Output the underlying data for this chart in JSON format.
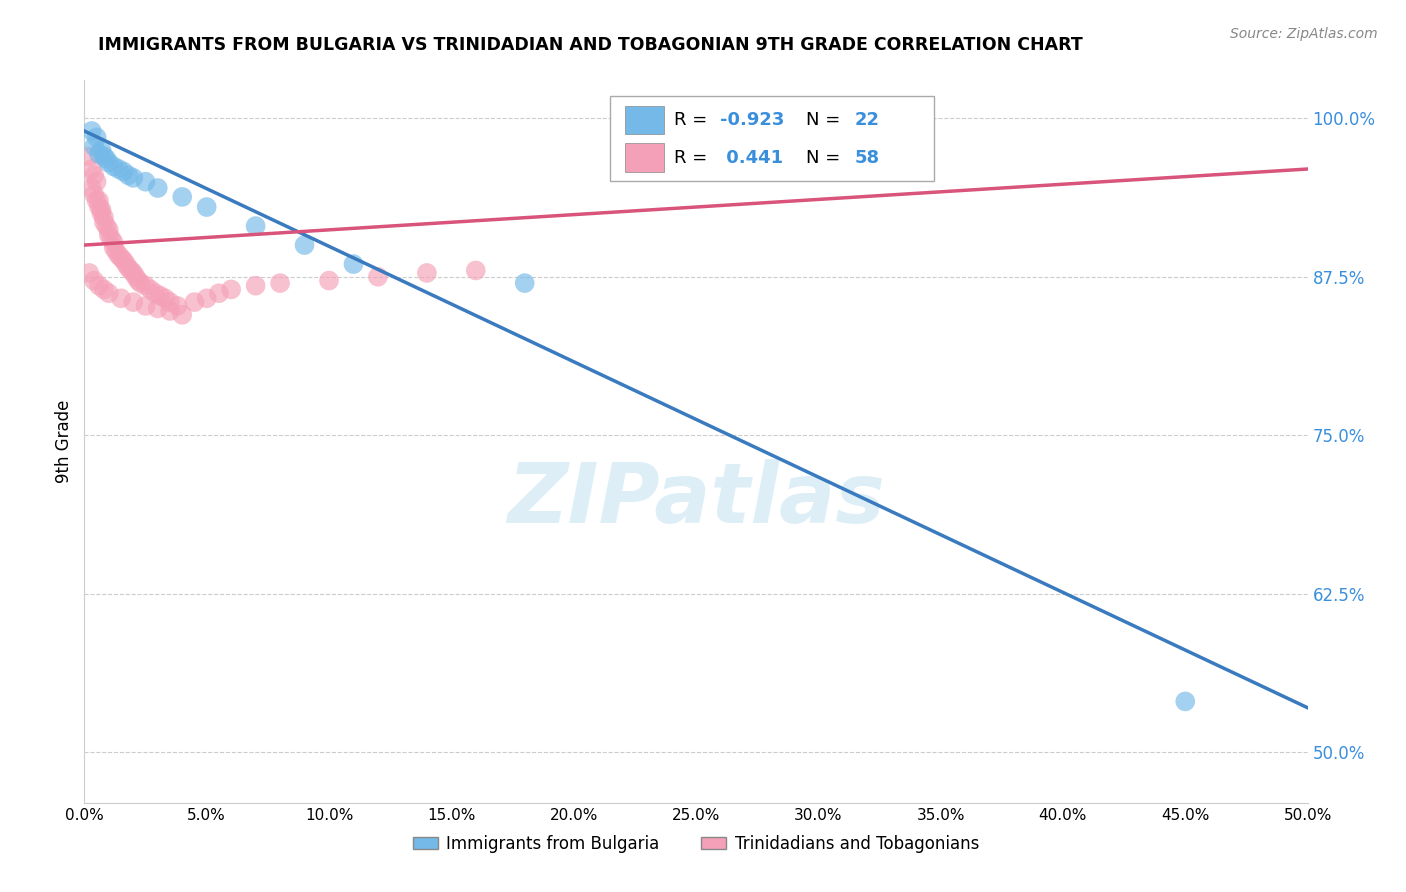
{
  "title": "IMMIGRANTS FROM BULGARIA VS TRINIDADIAN AND TOBAGONIAN 9TH GRADE CORRELATION CHART",
  "source": "Source: ZipAtlas.com",
  "ylabel": "9th Grade",
  "xlim": [
    0.0,
    0.5
  ],
  "ylim": [
    0.46,
    1.03
  ],
  "y_ticks": [
    0.5,
    0.625,
    0.75,
    0.875,
    1.0
  ],
  "y_tick_labels": [
    "50.0%",
    "62.5%",
    "75.0%",
    "87.5%",
    "100.0%"
  ],
  "x_ticks": [
    0.0,
    0.05,
    0.1,
    0.15,
    0.2,
    0.25,
    0.3,
    0.35,
    0.4,
    0.45,
    0.5
  ],
  "x_tick_labels": [
    "0.0%",
    "5.0%",
    "10.0%",
    "15.0%",
    "20.0%",
    "25.0%",
    "30.0%",
    "35.0%",
    "40.0%",
    "45.0%",
    "50.0%"
  ],
  "bulgaria_R": -0.923,
  "bulgaria_N": 22,
  "trinidad_R": 0.441,
  "trinidad_N": 58,
  "bulgaria_color": "#74b9e8",
  "trinidad_color": "#f4a0b8",
  "bulgaria_line_color": "#3a7abf",
  "trinidad_line_color": "#d9547a",
  "watermark": "ZIPatlas",
  "legend_bulgaria": "Immigrants from Bulgaria",
  "legend_trinidad": "Trinidadians and Tobagonians",
  "bulgaria_points": [
    [
      0.003,
      0.99
    ],
    [
      0.005,
      0.985
    ],
    [
      0.004,
      0.978
    ],
    [
      0.007,
      0.975
    ],
    [
      0.006,
      0.972
    ],
    [
      0.008,
      0.97
    ],
    [
      0.009,
      0.968
    ],
    [
      0.01,
      0.965
    ],
    [
      0.012,
      0.962
    ],
    [
      0.014,
      0.96
    ],
    [
      0.016,
      0.958
    ],
    [
      0.018,
      0.955
    ],
    [
      0.02,
      0.953
    ],
    [
      0.025,
      0.95
    ],
    [
      0.03,
      0.945
    ],
    [
      0.04,
      0.938
    ],
    [
      0.05,
      0.93
    ],
    [
      0.07,
      0.915
    ],
    [
      0.09,
      0.9
    ],
    [
      0.11,
      0.885
    ],
    [
      0.18,
      0.87
    ],
    [
      0.45,
      0.54
    ]
  ],
  "trinidad_points": [
    [
      0.002,
      0.97
    ],
    [
      0.003,
      0.96
    ],
    [
      0.004,
      0.955
    ],
    [
      0.005,
      0.95
    ],
    [
      0.003,
      0.945
    ],
    [
      0.004,
      0.94
    ],
    [
      0.005,
      0.935
    ],
    [
      0.006,
      0.935
    ],
    [
      0.006,
      0.93
    ],
    [
      0.007,
      0.928
    ],
    [
      0.007,
      0.925
    ],
    [
      0.008,
      0.922
    ],
    [
      0.008,
      0.918
    ],
    [
      0.009,
      0.915
    ],
    [
      0.01,
      0.912
    ],
    [
      0.01,
      0.908
    ],
    [
      0.011,
      0.905
    ],
    [
      0.012,
      0.902
    ],
    [
      0.012,
      0.898
    ],
    [
      0.013,
      0.895
    ],
    [
      0.014,
      0.892
    ],
    [
      0.015,
      0.89
    ],
    [
      0.016,
      0.888
    ],
    [
      0.017,
      0.885
    ],
    [
      0.018,
      0.882
    ],
    [
      0.019,
      0.88
    ],
    [
      0.02,
      0.878
    ],
    [
      0.021,
      0.875
    ],
    [
      0.022,
      0.872
    ],
    [
      0.023,
      0.87
    ],
    [
      0.025,
      0.868
    ],
    [
      0.027,
      0.865
    ],
    [
      0.029,
      0.862
    ],
    [
      0.031,
      0.86
    ],
    [
      0.033,
      0.858
    ],
    [
      0.035,
      0.855
    ],
    [
      0.038,
      0.852
    ],
    [
      0.002,
      0.878
    ],
    [
      0.004,
      0.872
    ],
    [
      0.006,
      0.868
    ],
    [
      0.008,
      0.865
    ],
    [
      0.01,
      0.862
    ],
    [
      0.015,
      0.858
    ],
    [
      0.02,
      0.855
    ],
    [
      0.025,
      0.852
    ],
    [
      0.03,
      0.85
    ],
    [
      0.035,
      0.848
    ],
    [
      0.04,
      0.845
    ],
    [
      0.045,
      0.855
    ],
    [
      0.05,
      0.858
    ],
    [
      0.055,
      0.862
    ],
    [
      0.06,
      0.865
    ],
    [
      0.07,
      0.868
    ],
    [
      0.08,
      0.87
    ],
    [
      0.1,
      0.872
    ],
    [
      0.12,
      0.875
    ],
    [
      0.14,
      0.878
    ],
    [
      0.16,
      0.88
    ]
  ]
}
